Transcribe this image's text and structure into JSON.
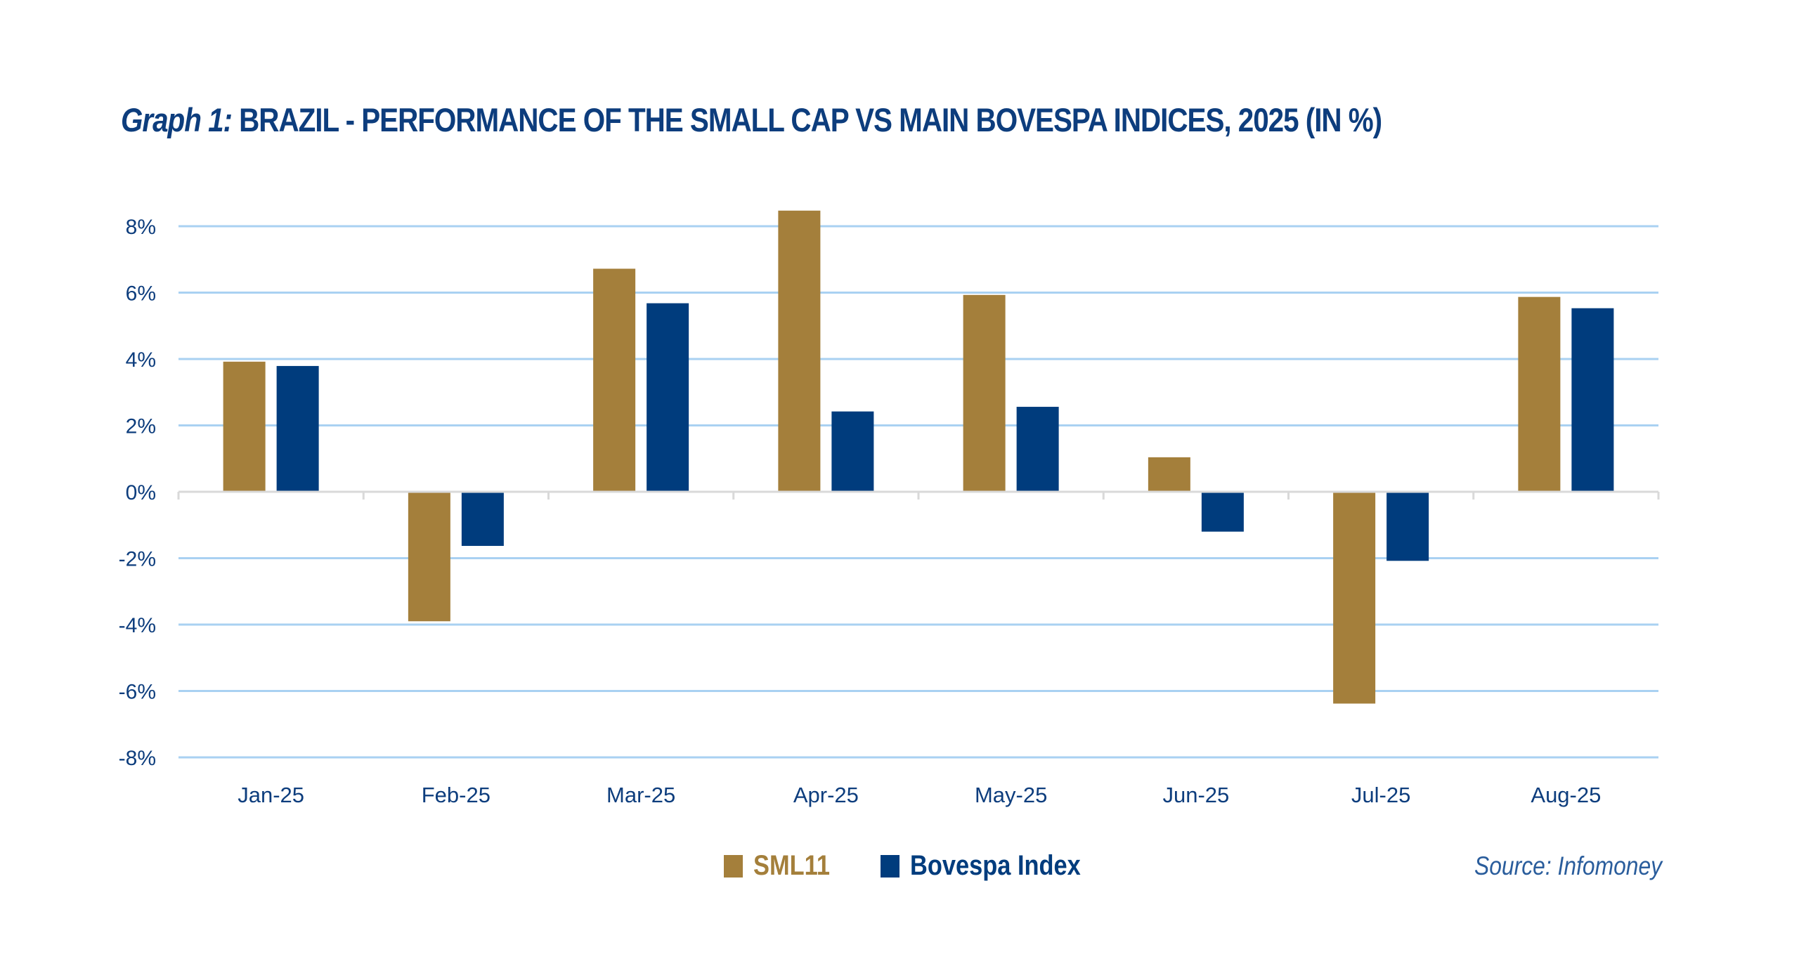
{
  "title": {
    "prefix": "Graph 1:",
    "text": " BRAZIL - PERFORMANCE OF THE SMALL CAP VS MAIN BOVESPA INDICES, 2025 (IN %)"
  },
  "source": "Source: Infomoney",
  "colors": {
    "sml11": "#a47f3b",
    "bovespa": "#003c7d",
    "gridline": "#a9d1f2",
    "axis": "#d9d9d9",
    "text": "#0d3d7d"
  },
  "chart_data": {
    "type": "bar",
    "title": "Graph 1: BRAZIL - PERFORMANCE OF THE SMALL CAP VS MAIN BOVESPA INDICES, 2025 (IN %)",
    "xlabel": "",
    "ylabel": "",
    "categories": [
      "Jan-25",
      "Feb-25",
      "Mar-25",
      "Apr-25",
      "May-25",
      "Jun-25",
      "Jul-25",
      "Aug-25"
    ],
    "series": [
      {
        "name": "SML11",
        "color": "#a47f3b",
        "values": [
          3.92,
          -3.9,
          6.72,
          8.47,
          5.93,
          1.04,
          -6.38,
          5.87
        ]
      },
      {
        "name": "Bovespa Index",
        "color": "#003c7d",
        "values": [
          3.79,
          -1.63,
          5.68,
          2.42,
          2.56,
          -1.2,
          -2.08,
          5.53
        ]
      }
    ],
    "ylim": [
      -8,
      8
    ],
    "yticks": [
      8,
      6,
      4,
      2,
      0,
      -2,
      -4,
      -6,
      -8
    ],
    "ytick_labels": [
      "8%",
      "6%",
      "4%",
      "2%",
      "0%",
      "-2%",
      "-4%",
      "-6%",
      "-8%"
    ],
    "grid": true,
    "legend_position": "bottom-center",
    "source": "Source: Infomoney"
  }
}
